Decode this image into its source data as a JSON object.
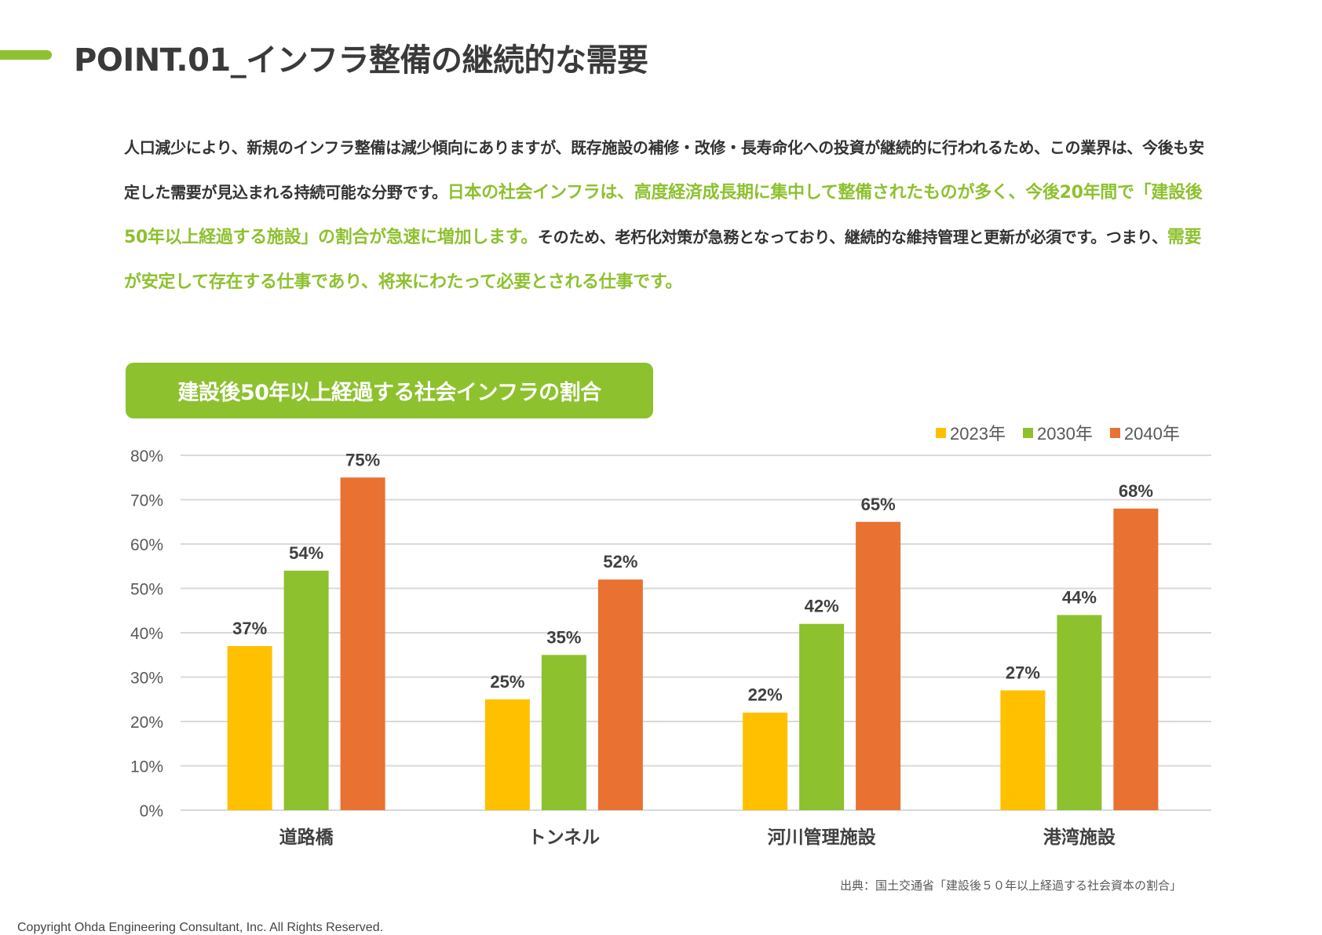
{
  "header": {
    "title": "POINT.01_インフラ整備の継続的な需要"
  },
  "intro": {
    "segments": [
      {
        "text": "人口減少により、新規のインフラ整備は減少傾向にありますが、既存施設の補修・改修・長寿命化への投資が継続的に行われるため、この業界は、今後も安定した需要が見込まれる持続可能な分野です。",
        "highlight": false
      },
      {
        "text": "日本の社会インフラは、高度経済成長期に集中して整備されたものが多く、今後20年間で「建設後50年以上経過する施設」の割合が急速に増加します。",
        "highlight": true
      },
      {
        "text": "そのため、老朽化対策が急務となっており、継続的な維持管理と更新が必須です。つまり、",
        "highlight": false
      },
      {
        "text": "需要が安定して存在する仕事であり、将来にわたって必要とされる仕事です。",
        "highlight": true
      }
    ]
  },
  "colors": {
    "accent": "#8dc12e",
    "text": "#333333",
    "grid": "#d9d9d9"
  },
  "chart_data": {
    "type": "bar",
    "title": "建設後50年以上経過する社会インフラの割合",
    "categories": [
      "道路橋",
      "トンネル",
      "河川管理施設",
      "港湾施設"
    ],
    "series": [
      {
        "name": "2023年",
        "color": "#ffc000",
        "values": [
          37,
          25,
          22,
          27
        ]
      },
      {
        "name": "2030年",
        "color": "#8dc12e",
        "values": [
          54,
          35,
          42,
          44
        ]
      },
      {
        "name": "2040年",
        "color": "#e97132",
        "values": [
          75,
          52,
          65,
          68
        ]
      }
    ],
    "yticks": [
      "0%",
      "10%",
      "20%",
      "30%",
      "40%",
      "50%",
      "60%",
      "70%",
      "80%"
    ],
    "ylim": [
      0,
      80
    ],
    "yunit": "%",
    "xlabel": "",
    "ylabel": "",
    "grid": true,
    "legend_position": "top-right",
    "data_labels": true
  },
  "footer": {
    "source": "出典：国土交通省「建設後５０年以上経過する社会資本の割合」",
    "copyright": "Copyright Ohda Engineering Consultant, Inc. All Rights Reserved."
  }
}
